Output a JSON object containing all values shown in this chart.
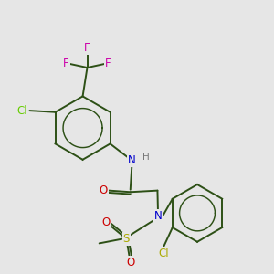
{
  "bg_color": "#e6e6e6",
  "bond_color": "#2d5016",
  "bond_width": 1.4,
  "atom_colors": {
    "F": "#cc00aa",
    "Cl1": "#66cc00",
    "Cl2": "#aaaa00",
    "N": "#0000cc",
    "H": "#777777",
    "O": "#cc0000",
    "S": "#aaaa00",
    "C": "#2d5016"
  },
  "font_size": 8.5,
  "fig_size": [
    3.0,
    3.0
  ],
  "dpi": 100
}
